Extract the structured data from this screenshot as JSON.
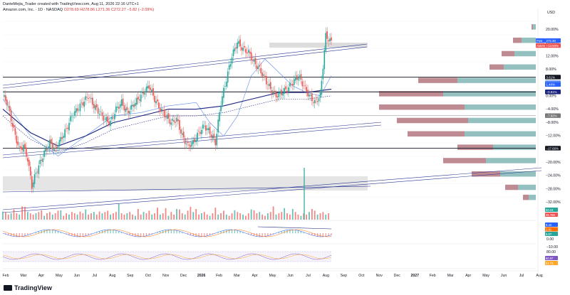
{
  "header": {
    "creator_line": "DanteMejia_Trader created with TradingView.com, Aug 11, 2026 22:16 UTC+1",
    "symbol_line": "Amazon.com, Inc. · 1D · NASDAQ",
    "ohlc": "O278.69 H278.86 L271.36 C272.27 −5.82 (−2.09%)"
  },
  "brand": {
    "logo_text": "TradingView"
  },
  "colors": {
    "up": "#26a69a",
    "down": "#ef5350",
    "axis_text": "#131722",
    "ma_fast": "#5b8def",
    "ma_slow": "#1a237e",
    "channel": "#283593",
    "vp_up": "#3d8c8c",
    "vp_down": "#8b2c3a",
    "box": "#cfcfcf"
  },
  "chart_data": {
    "type": "candlestick",
    "y_axis": {
      "unit_label": "USD",
      "ticks": [
        "20.00%",
        "16.00%",
        "12.00%",
        "8.00%",
        "4.00%",
        "0.00%",
        "−4.00%",
        "−8.00%",
        "−12.00%",
        "−16.00%",
        "−20.00%",
        "−24.00%",
        "−28.00%",
        "−32.00%"
      ],
      "ylim": [
        -35,
        22
      ],
      "markers": [
        {
          "label": "Post",
          "value": "272.30",
          "pct": 13.7,
          "color": "#2962ff"
        },
        {
          "label": "AMZN",
          "value": "+13.93%",
          "pct": 13.9,
          "color": "#ef5350"
        },
        {
          "label": "",
          "value": "3.61%",
          "pct": 3.61,
          "color": "#131722"
        },
        {
          "label": "",
          "value": "1.90%",
          "pct": 1.9,
          "color": "#5b8def"
        },
        {
          "label": "",
          "value": "1.40%",
          "pct": 1.4,
          "color": "#2962ff"
        },
        {
          "label": "",
          "value": "−0.81%",
          "pct": -0.81,
          "color": "#1a237e"
        },
        {
          "label": "",
          "value": "−7.92%",
          "pct": -7.92,
          "color": "#777777"
        },
        {
          "label": "",
          "value": "−17.66%",
          "pct": -17.66,
          "color": "#131722"
        }
      ]
    },
    "x_axis": {
      "labels": [
        "Feb",
        "Mar",
        "Apr",
        "May",
        "Jun",
        "Jul",
        "Aug",
        "Sep",
        "Oct",
        "Nov",
        "Dec",
        "2026",
        "Feb",
        "Mar",
        "Apr",
        "May",
        "Jun",
        "Jul",
        "Aug",
        "Sep",
        "Oct",
        "Nov",
        "Dec",
        "2027",
        "Feb",
        "Mar",
        "Apr",
        "May",
        "Jun",
        "Jul",
        "Aug"
      ]
    },
    "horizontal_levels_pct": [
      3.61,
      -0.81,
      -7.92,
      -17.66
    ],
    "price_path_pct": [
      [
        0,
        -2
      ],
      [
        3,
        -4
      ],
      [
        6,
        -9
      ],
      [
        9,
        -14
      ],
      [
        12,
        -18
      ],
      [
        15,
        -17
      ],
      [
        18,
        -21
      ],
      [
        21,
        -29
      ],
      [
        24,
        -25
      ],
      [
        27,
        -22
      ],
      [
        30,
        -19
      ],
      [
        34,
        -16
      ],
      [
        38,
        -18
      ],
      [
        42,
        -15
      ],
      [
        46,
        -12
      ],
      [
        50,
        -8
      ],
      [
        54,
        -6
      ],
      [
        58,
        -4
      ],
      [
        62,
        -2
      ],
      [
        66,
        -5
      ],
      [
        70,
        -7
      ],
      [
        74,
        -9
      ],
      [
        78,
        -10
      ],
      [
        82,
        -6
      ],
      [
        86,
        -4
      ],
      [
        90,
        -7
      ],
      [
        94,
        -5
      ],
      [
        98,
        -3
      ],
      [
        102,
        -1
      ],
      [
        106,
        1
      ],
      [
        110,
        -3
      ],
      [
        114,
        -6
      ],
      [
        118,
        -8
      ],
      [
        122,
        -10
      ],
      [
        126,
        -9
      ],
      [
        130,
        -14
      ],
      [
        134,
        -17
      ],
      [
        138,
        -16
      ],
      [
        142,
        -13
      ],
      [
        146,
        -11
      ],
      [
        150,
        -13
      ],
      [
        154,
        -16
      ],
      [
        158,
        -4
      ],
      [
        162,
        3
      ],
      [
        166,
        10
      ],
      [
        170,
        14
      ],
      [
        174,
        12
      ],
      [
        178,
        11
      ],
      [
        182,
        8
      ],
      [
        186,
        6
      ],
      [
        190,
        3
      ],
      [
        194,
        0
      ],
      [
        198,
        -2
      ],
      [
        202,
        -1
      ],
      [
        206,
        0
      ],
      [
        210,
        2
      ],
      [
        214,
        4
      ],
      [
        218,
        1
      ],
      [
        222,
        -2
      ],
      [
        226,
        -4
      ],
      [
        230,
        -2
      ],
      [
        234,
        16
      ],
      [
        238,
        14
      ]
    ],
    "ma_fast_pct": [
      [
        0,
        -3
      ],
      [
        20,
        -14
      ],
      [
        40,
        -20
      ],
      [
        60,
        -14
      ],
      [
        80,
        -8
      ],
      [
        100,
        -7
      ],
      [
        120,
        -5
      ],
      [
        140,
        -4
      ],
      [
        150,
        -10
      ],
      [
        160,
        -14
      ],
      [
        170,
        -8
      ],
      [
        180,
        4
      ],
      [
        190,
        9
      ],
      [
        200,
        5
      ],
      [
        210,
        1
      ],
      [
        220,
        -1
      ],
      [
        230,
        -2
      ],
      [
        238,
        4
      ]
    ],
    "ma_slow_pct": [
      [
        0,
        -6
      ],
      [
        20,
        -13
      ],
      [
        40,
        -17
      ],
      [
        60,
        -14
      ],
      [
        80,
        -10
      ],
      [
        100,
        -8
      ],
      [
        120,
        -6
      ],
      [
        140,
        -6
      ],
      [
        160,
        -5
      ],
      [
        180,
        -3
      ],
      [
        200,
        -1
      ],
      [
        220,
        -1
      ],
      [
        238,
        0
      ]
    ],
    "volume_spikes": [
      0.3,
      0.6,
      0.4,
      0.5,
      0.8,
      0.5,
      0.4,
      0.7,
      1.0,
      0.6,
      0.5,
      0.4,
      0.5,
      0.6,
      0.4,
      0.3,
      0.5,
      0.6,
      0.4,
      0.5,
      0.7,
      0.4,
      0.3,
      0.5,
      0.4,
      0.6,
      0.5,
      0.4,
      0.3,
      0.5,
      0.8,
      0.4,
      0.5,
      0.6,
      0.4,
      0.3,
      0.5,
      0.6,
      0.7,
      0.4,
      0.5,
      0.6,
      0.9,
      0.5,
      0.4,
      0.5,
      0.6,
      0.4,
      0.3,
      0.5,
      0.4,
      0.6,
      0.5,
      0.7,
      0.4,
      0.5,
      0.6,
      0.4,
      0.5,
      0.9
    ],
    "volume_markers": [
      "50.24",
      "35.786"
    ],
    "macd_markers": [
      "8.42",
      "2.91",
      "5.07"
    ],
    "macd_ticks": [
      "0.00",
      "−10.00"
    ],
    "rsi_markers": [
      "60.97",
      "51.73"
    ],
    "rsi_ticks": [
      "80.00"
    ],
    "volume_profile": [
      {
        "pct": 19,
        "up": 4,
        "down": 2
      },
      {
        "pct": 15,
        "up": 20,
        "down": 12
      },
      {
        "pct": 11,
        "up": 30,
        "down": 18
      },
      {
        "pct": 7,
        "up": 45,
        "down": 20
      },
      {
        "pct": 3,
        "up": 110,
        "down": 55
      },
      {
        "pct": -1,
        "up": 130,
        "down": 90
      },
      {
        "pct": -5,
        "up": 100,
        "down": 120
      },
      {
        "pct": -9,
        "up": 95,
        "down": 100
      },
      {
        "pct": -13,
        "up": 100,
        "down": 80
      },
      {
        "pct": -17,
        "up": 60,
        "down": 50
      },
      {
        "pct": -21,
        "up": 70,
        "down": 60
      },
      {
        "pct": -25,
        "up": 50,
        "down": 40
      },
      {
        "pct": -29,
        "up": 25,
        "down": 18
      },
      {
        "pct": -32,
        "up": 10,
        "down": 8
      }
    ]
  }
}
